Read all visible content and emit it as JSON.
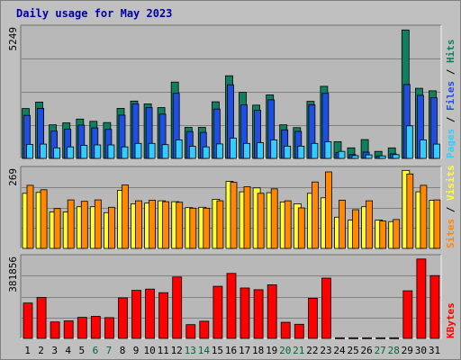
{
  "chart_data": {
    "type": "bar",
    "title": "Daily usage for May 2023",
    "categories": [
      "1",
      "2",
      "3",
      "4",
      "5",
      "6",
      "7",
      "8",
      "9",
      "10",
      "11",
      "12",
      "13",
      "14",
      "15",
      "16",
      "17",
      "18",
      "19",
      "20",
      "21",
      "22",
      "23",
      "24",
      "25",
      "26",
      "27",
      "28",
      "29",
      "30",
      "31"
    ],
    "weekend_days": [
      "6",
      "7",
      "13",
      "14",
      "20",
      "21",
      "27",
      "28"
    ],
    "colors": {
      "background": "#c0c0c0",
      "plot_background": "#b8b8b8",
      "gridline": "#808080",
      "title": "#0000a0",
      "weekday_label": "#000000",
      "weekend_label": "#006633",
      "hits": "#0f7f5f",
      "files": "#1f4fe0",
      "pages": "#33ccff",
      "visits": "#ffff33",
      "sites": "#ff8800",
      "kbytes": "#ff0000"
    },
    "panels": [
      {
        "id": "top",
        "max_label": "5249",
        "ylim": [
          0,
          5249
        ],
        "legend": [
          "Pages",
          "Files",
          "Hits"
        ],
        "series": [
          {
            "name": "Hits",
            "values": [
              1990,
              2250,
              1340,
              1420,
              1570,
              1480,
              1430,
              2000,
              2290,
              2180,
              2030,
              3050,
              1240,
              1240,
              2260,
              3300,
              2640,
              2130,
              2540,
              1340,
              1230,
              2280,
              2880,
              670,
              420,
              750,
              280,
              420,
              5130,
              2800,
              2700
            ]
          },
          {
            "name": "Files",
            "values": [
              1720,
              2000,
              1090,
              1170,
              1330,
              1220,
              1160,
              1730,
              2170,
              2030,
              1770,
              2600,
              1070,
              1040,
              1970,
              2940,
              2140,
              1920,
              2340,
              1140,
              1080,
              2140,
              2600,
              230,
              150,
              250,
              100,
              180,
              2950,
              2520,
              2420
            ]
          },
          {
            "name": "Pages",
            "values": [
              560,
              570,
              420,
              460,
              520,
              540,
              540,
              460,
              600,
              600,
              550,
              740,
              480,
              460,
              580,
              810,
              600,
              630,
              740,
              490,
              490,
              600,
              670,
              280,
              110,
              140,
              100,
              150,
              1300,
              740,
              570
            ]
          }
        ]
      },
      {
        "id": "middle",
        "max_label": "269",
        "ylim": [
          0,
          269
        ],
        "legend": [
          "Sites",
          "Visits"
        ],
        "series": [
          {
            "name": "Visits",
            "values": [
              185,
              188,
              122,
              122,
              140,
              140,
              120,
              195,
              150,
              152,
              160,
              157,
              137,
              138,
              165,
              225,
              190,
              203,
              187,
              156,
              150,
              185,
              170,
              105,
              95,
              140,
              95,
              90,
              262,
              190,
              162
            ]
          },
          {
            "name": "Sites",
            "values": [
              212,
              197,
              134,
              163,
              158,
              163,
              138,
              213,
              160,
              162,
              157,
              155,
              135,
              135,
              160,
              222,
              207,
              185,
              200,
              160,
              136,
              223,
              257,
              162,
              130,
              160,
              92,
              97,
              250,
              212,
              163
            ]
          }
        ]
      },
      {
        "id": "bottom",
        "max_label": "381856",
        "ylim": [
          0,
          381856
        ],
        "legend": [
          "KBytes"
        ],
        "series": [
          {
            "name": "KBytes",
            "values": [
              165000,
              191000,
              77000,
              82000,
              98000,
              103000,
              97000,
              189000,
              224000,
              230000,
              213000,
              286000,
              64000,
              80000,
              243000,
              303000,
              235000,
              227000,
              250000,
              75000,
              66000,
              187000,
              281000,
              3000,
              3000,
              3000,
              3000,
              3000,
              222000,
              370000,
              293000
            ]
          }
        ]
      }
    ]
  }
}
